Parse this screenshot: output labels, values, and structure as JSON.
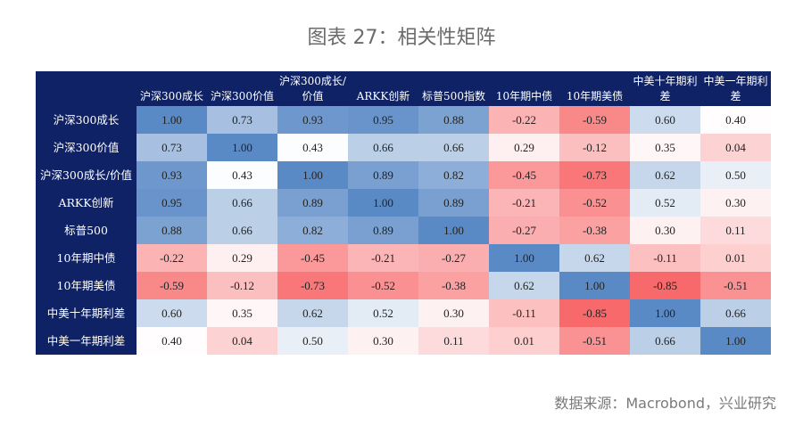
{
  "title": "图表 27：相关性矩阵",
  "source": "数据来源：Macrobond，兴业研究",
  "colors": {
    "header_bg": "#0f2266",
    "positive": "#5a8ac6",
    "mid": "#ffffff",
    "negative": "#f8696b"
  },
  "chart_data": {
    "type": "heatmap",
    "title": "图表 27：相关性矩阵",
    "columns": [
      "沪深300成长",
      "沪深300价值",
      "沪深300成长/价值",
      "ARKK创新",
      "标普500指数",
      "10年期中债",
      "10年期美债",
      "中美十年期利差",
      "中美一年期利差"
    ],
    "rows": [
      "沪深300成长",
      "沪深300价值",
      "沪深300成长/价值",
      "ARKK创新",
      "标普500",
      "10年期中债",
      "10年期美债",
      "中美十年期利差",
      "中美一年期利差"
    ],
    "values": [
      [
        1.0,
        0.73,
        0.93,
        0.95,
        0.88,
        -0.22,
        -0.59,
        0.6,
        0.4
      ],
      [
        0.73,
        1.0,
        0.43,
        0.66,
        0.66,
        0.29,
        -0.12,
        0.35,
        0.04
      ],
      [
        0.93,
        0.43,
        1.0,
        0.89,
        0.82,
        -0.45,
        -0.73,
        0.62,
        0.5
      ],
      [
        0.95,
        0.66,
        0.89,
        1.0,
        0.89,
        -0.21,
        -0.52,
        0.52,
        0.3
      ],
      [
        0.88,
        0.66,
        0.82,
        0.89,
        1.0,
        -0.27,
        -0.38,
        0.3,
        0.11
      ],
      [
        -0.22,
        0.29,
        -0.45,
        -0.21,
        -0.27,
        1.0,
        0.62,
        -0.11,
        0.01
      ],
      [
        -0.59,
        -0.12,
        -0.73,
        -0.52,
        -0.38,
        0.62,
        1.0,
        -0.85,
        -0.51
      ],
      [
        0.6,
        0.35,
        0.62,
        0.52,
        0.3,
        -0.11,
        -0.85,
        1.0,
        0.66
      ],
      [
        0.4,
        0.04,
        0.5,
        0.3,
        0.11,
        0.01,
        -0.51,
        0.66,
        1.0
      ]
    ],
    "value_format": "0.00",
    "color_scale": "diverging red-white-blue"
  }
}
